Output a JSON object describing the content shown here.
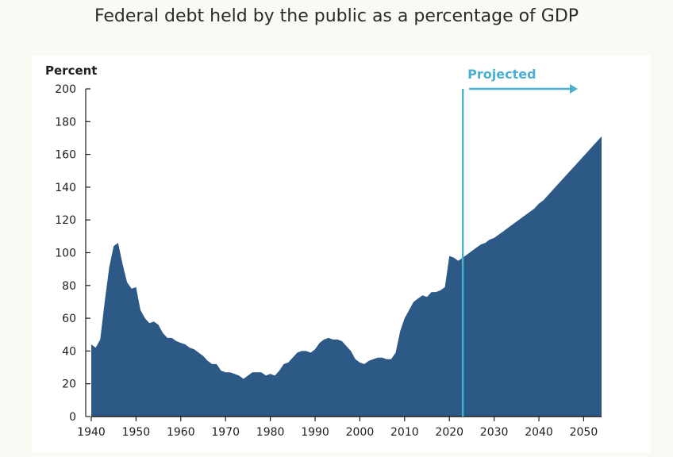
{
  "chart_data": {
    "type": "area",
    "title": "Federal debt held by the public as a percentage of GDP",
    "ylabel": "Percent",
    "xlabel": "",
    "xlim": [
      1940,
      2054
    ],
    "ylim": [
      0,
      200
    ],
    "x_ticks": [
      1940,
      1950,
      1960,
      1970,
      1980,
      1990,
      2000,
      2010,
      2020,
      2030,
      2040,
      2050
    ],
    "y_ticks": [
      0,
      20,
      40,
      60,
      80,
      100,
      120,
      140,
      160,
      180,
      200
    ],
    "grid": false,
    "series": [
      {
        "color": "#2c5985",
        "x": [
          1940,
          1941,
          1942,
          1943,
          1944,
          1945,
          1946,
          1947,
          1948,
          1949,
          1950,
          1951,
          1952,
          1953,
          1954,
          1955,
          1956,
          1957,
          1958,
          1959,
          1960,
          1961,
          1962,
          1963,
          1964,
          1965,
          1966,
          1967,
          1968,
          1969,
          1970,
          1971,
          1972,
          1973,
          1974,
          1975,
          1976,
          1977,
          1978,
          1979,
          1980,
          1981,
          1982,
          1983,
          1984,
          1985,
          1986,
          1987,
          1988,
          1989,
          1990,
          1991,
          1992,
          1993,
          1994,
          1995,
          1996,
          1997,
          1998,
          1999,
          2000,
          2001,
          2002,
          2003,
          2004,
          2005,
          2006,
          2007,
          2008,
          2009,
          2010,
          2011,
          2012,
          2013,
          2014,
          2015,
          2016,
          2017,
          2018,
          2019,
          2020,
          2021,
          2022,
          2023,
          2024,
          2025,
          2026,
          2027,
          2028,
          2029,
          2030,
          2031,
          2032,
          2033,
          2034,
          2035,
          2036,
          2037,
          2038,
          2039,
          2040,
          2041,
          2042,
          2043,
          2044,
          2045,
          2046,
          2047,
          2048,
          2049,
          2050,
          2051,
          2052,
          2053,
          2054
        ],
        "values": [
          44,
          42,
          47,
          70,
          91,
          104,
          106,
          93,
          82,
          78,
          79,
          65,
          60,
          57,
          58,
          56,
          51,
          48,
          48,
          46,
          45,
          44,
          42,
          41,
          39,
          37,
          34,
          32,
          32,
          28,
          27,
          27,
          26,
          25,
          23,
          25,
          27,
          27,
          27,
          25,
          26,
          25,
          28,
          32,
          33,
          36,
          39,
          40,
          40,
          39,
          41,
          45,
          47,
          48,
          47,
          47,
          46,
          43,
          40,
          35,
          33,
          32,
          34,
          35,
          36,
          36,
          35,
          35,
          39,
          52,
          60,
          65,
          70,
          72,
          74,
          73,
          76,
          76,
          77,
          79,
          98,
          97,
          95,
          97,
          99,
          101,
          103,
          105,
          106,
          108,
          109,
          111,
          113,
          115,
          117,
          119,
          121,
          123,
          125,
          127,
          130,
          132,
          135,
          138,
          141,
          144,
          147,
          150,
          153,
          156,
          159,
          162,
          165,
          168,
          171
        ]
      }
    ],
    "projection": {
      "label": "Projected",
      "start_x": 2023,
      "color": "#4bafd0"
    }
  }
}
